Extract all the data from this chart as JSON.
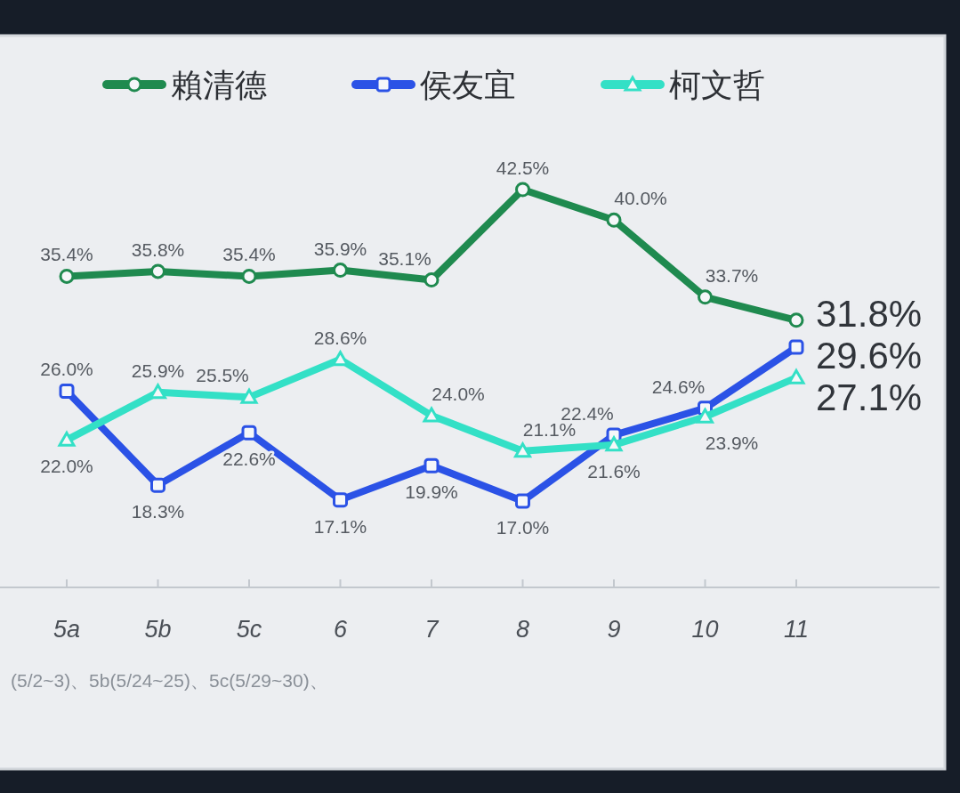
{
  "chart_data": {
    "type": "line",
    "categories": [
      "5a",
      "5b",
      "5c",
      "6",
      "7",
      "8",
      "9",
      "10",
      "11"
    ],
    "series": [
      {
        "name": "賴清德",
        "color": "#1f8a4f",
        "marker": "circle",
        "values": [
          35.4,
          35.8,
          35.4,
          35.9,
          35.1,
          42.5,
          40.0,
          33.7,
          31.8
        ],
        "value_labels": [
          "35.4%",
          "35.8%",
          "35.4%",
          "35.9%",
          "35.1%",
          "42.5%",
          "40.0%",
          "33.7%",
          "31.8%"
        ]
      },
      {
        "name": "侯友宜",
        "color": "#2b52e6",
        "marker": "square",
        "values": [
          26.0,
          18.3,
          22.6,
          17.1,
          19.9,
          17.0,
          22.4,
          24.6,
          29.6
        ],
        "value_labels": [
          "26.0%",
          "18.3%",
          "22.6%",
          "17.1%",
          "19.9%",
          "17.0%",
          "22.4%",
          "24.6%",
          "29.6%"
        ]
      },
      {
        "name": "柯文哲",
        "color": "#33e0c6",
        "marker": "triangle",
        "values": [
          22.0,
          25.9,
          25.5,
          28.6,
          24.0,
          21.1,
          21.6,
          23.9,
          27.1
        ],
        "value_labels": [
          "22.0%",
          "25.9%",
          "25.5%",
          "28.6%",
          "24.0%",
          "21.1%",
          "21.6%",
          "23.9%",
          "27.1%"
        ]
      }
    ],
    "tick_labels": "x",
    "legend": "top",
    "line_style": "solid",
    "annotations": [
      "(5/2~3)、5b(5/24~25)、5c(5/29~30)、"
    ]
  }
}
